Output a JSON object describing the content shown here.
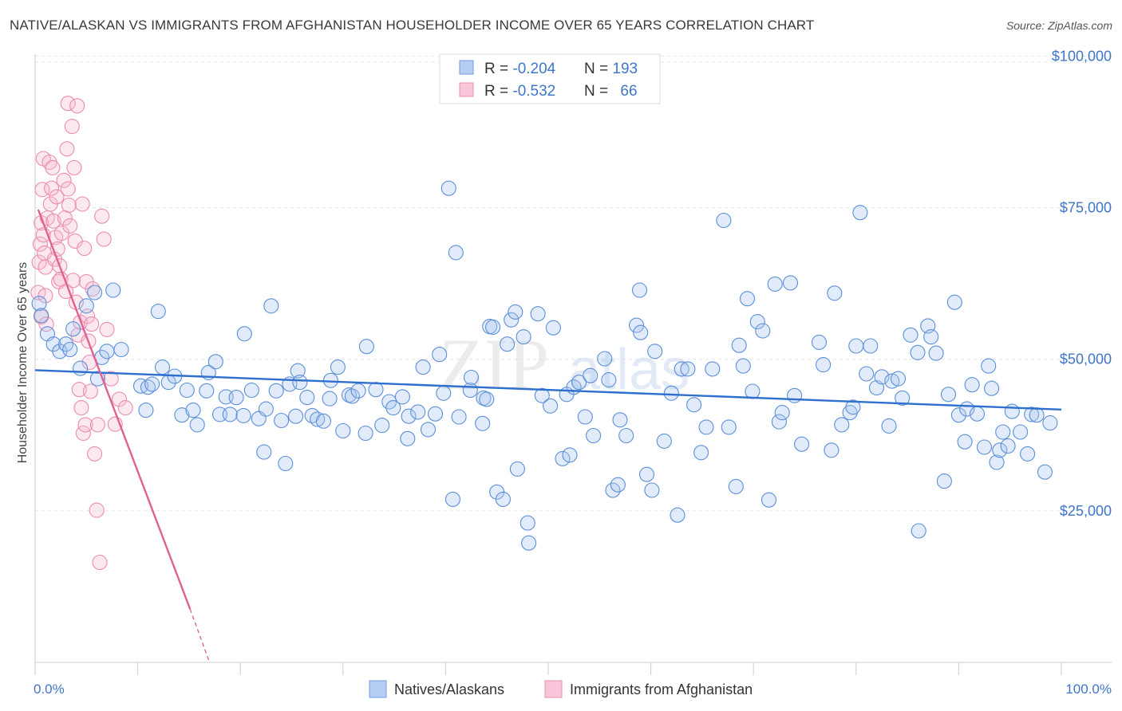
{
  "title": "NATIVE/ALASKAN VS IMMIGRANTS FROM AFGHANISTAN HOUSEHOLDER INCOME OVER 65 YEARS CORRELATION CHART",
  "source": "Source: ZipAtlas.com",
  "watermark": {
    "zip": "ZIP",
    "atlas": "atlas"
  },
  "colors": {
    "blue": "#5b8fd6",
    "blue_fill": "#a9c6ef",
    "blue_line": "#2f6fce",
    "pink": "#ea8bb0",
    "pink_fill": "#f6bdd2",
    "pink_line": "#e0638f",
    "tick_label": "#3f76c8",
    "grid": "#e4e4e4"
  },
  "stats": {
    "blue": {
      "r_label": "R = ",
      "r": "-0.204",
      "n_label": "N = ",
      "n": "193"
    },
    "pink": {
      "r_label": "R = ",
      "r": "-0.532",
      "n_label": "N = ",
      "n": "66"
    }
  },
  "chart_data": {
    "type": "scatter",
    "ylabel": "Householder Income Over 65 years",
    "xlim": [
      0,
      100
    ],
    "ylim": [
      0,
      104000
    ],
    "x_tick_labels": [
      "0.0%",
      "100.0%"
    ],
    "y_ticks": [
      25000,
      50000,
      75000,
      100000
    ],
    "y_tick_labels": [
      "$25,000",
      "$50,000",
      "$75,000",
      "$100,000"
    ],
    "legend": [
      "Natives/Alaskans",
      "Immigrants from Afghanistan"
    ],
    "legend_position": "bottom",
    "grid": true,
    "series": [
      {
        "name": "Natives/Alaskans",
        "trend": {
          "x": [
            0,
            100
          ],
          "y": [
            48200,
            41700
          ]
        },
        "points": [
          [
            0.4,
            59200
          ],
          [
            0.6,
            57200
          ],
          [
            1.2,
            54200
          ],
          [
            1.8,
            52500
          ],
          [
            2.4,
            51300
          ],
          [
            3.0,
            52500
          ],
          [
            3.4,
            51600
          ],
          [
            3.7,
            55000
          ],
          [
            4.4,
            48500
          ],
          [
            5.0,
            58800
          ],
          [
            5.8,
            61000
          ],
          [
            6.1,
            46800
          ],
          [
            6.5,
            50300
          ],
          [
            7.0,
            51300
          ],
          [
            7.6,
            61400
          ],
          [
            8.4,
            51600
          ],
          [
            10.3,
            45600
          ],
          [
            10.8,
            41600
          ],
          [
            11.0,
            45400
          ],
          [
            11.4,
            45900
          ],
          [
            12.0,
            57900
          ],
          [
            12.4,
            48700
          ],
          [
            13.0,
            46200
          ],
          [
            13.6,
            47200
          ],
          [
            14.3,
            40800
          ],
          [
            14.8,
            44900
          ],
          [
            15.4,
            41600
          ],
          [
            15.8,
            39200
          ],
          [
            16.7,
            44800
          ],
          [
            16.9,
            47800
          ],
          [
            17.6,
            49600
          ],
          [
            18.0,
            40900
          ],
          [
            18.6,
            43800
          ],
          [
            19.0,
            40900
          ],
          [
            19.6,
            43700
          ],
          [
            20.3,
            40700
          ],
          [
            20.4,
            54200
          ],
          [
            21.1,
            44900
          ],
          [
            21.8,
            40200
          ],
          [
            22.3,
            34700
          ],
          [
            22.5,
            41800
          ],
          [
            23.0,
            58800
          ],
          [
            23.5,
            44800
          ],
          [
            24.0,
            39900
          ],
          [
            24.4,
            32800
          ],
          [
            24.8,
            45900
          ],
          [
            25.4,
            40600
          ],
          [
            25.6,
            48100
          ],
          [
            25.8,
            46200
          ],
          [
            26.5,
            43700
          ],
          [
            27.0,
            40700
          ],
          [
            27.5,
            40100
          ],
          [
            28.1,
            39800
          ],
          [
            28.7,
            43500
          ],
          [
            28.8,
            46500
          ],
          [
            29.5,
            48700
          ],
          [
            30.0,
            38200
          ],
          [
            30.6,
            44100
          ],
          [
            30.9,
            43900
          ],
          [
            31.5,
            44800
          ],
          [
            32.2,
            37800
          ],
          [
            32.3,
            52100
          ],
          [
            33.2,
            45000
          ],
          [
            33.8,
            39100
          ],
          [
            34.5,
            43000
          ],
          [
            34.9,
            42000
          ],
          [
            35.8,
            43800
          ],
          [
            36.3,
            36900
          ],
          [
            36.4,
            40600
          ],
          [
            37.3,
            41300
          ],
          [
            37.8,
            48700
          ],
          [
            38.3,
            38400
          ],
          [
            39.0,
            41000
          ],
          [
            39.4,
            50800
          ],
          [
            39.8,
            44400
          ],
          [
            40.3,
            78200
          ],
          [
            40.7,
            26900
          ],
          [
            41.0,
            67600
          ],
          [
            41.3,
            40500
          ],
          [
            42.4,
            44900
          ],
          [
            42.5,
            47000
          ],
          [
            43.6,
            39400
          ],
          [
            43.7,
            43600
          ],
          [
            44.0,
            43400
          ],
          [
            44.3,
            55400
          ],
          [
            44.6,
            55300
          ],
          [
            45.0,
            28100
          ],
          [
            45.6,
            26900
          ],
          [
            46.0,
            52500
          ],
          [
            46.4,
            56500
          ],
          [
            46.8,
            57800
          ],
          [
            47.0,
            31900
          ],
          [
            47.6,
            53700
          ],
          [
            48.0,
            23000
          ],
          [
            48.1,
            19700
          ],
          [
            49.0,
            57500
          ],
          [
            49.4,
            44000
          ],
          [
            50.2,
            42300
          ],
          [
            50.5,
            55200
          ],
          [
            51.4,
            33600
          ],
          [
            51.8,
            44200
          ],
          [
            52.1,
            34200
          ],
          [
            52.5,
            45400
          ],
          [
            53.0,
            46200
          ],
          [
            53.6,
            40500
          ],
          [
            54.1,
            47300
          ],
          [
            54.4,
            37400
          ],
          [
            55.5,
            50100
          ],
          [
            55.9,
            46600
          ],
          [
            56.3,
            28400
          ],
          [
            56.8,
            29300
          ],
          [
            57.0,
            40000
          ],
          [
            57.6,
            37400
          ],
          [
            58.6,
            55600
          ],
          [
            58.9,
            61400
          ],
          [
            59.0,
            54400
          ],
          [
            59.6,
            31000
          ],
          [
            60.1,
            28400
          ],
          [
            60.4,
            51300
          ],
          [
            61.3,
            36500
          ],
          [
            62.0,
            44400
          ],
          [
            62.6,
            24300
          ],
          [
            63.0,
            48400
          ],
          [
            63.6,
            48400
          ],
          [
            64.2,
            42500
          ],
          [
            64.9,
            34600
          ],
          [
            65.4,
            38800
          ],
          [
            66.0,
            48400
          ],
          [
            67.1,
            72900
          ],
          [
            67.6,
            38800
          ],
          [
            68.3,
            29000
          ],
          [
            68.6,
            52300
          ],
          [
            69.0,
            48900
          ],
          [
            69.4,
            60000
          ],
          [
            69.9,
            44700
          ],
          [
            70.4,
            56200
          ],
          [
            70.9,
            54700
          ],
          [
            71.5,
            26800
          ],
          [
            72.1,
            62400
          ],
          [
            72.5,
            39700
          ],
          [
            72.8,
            41200
          ],
          [
            73.6,
            62600
          ],
          [
            74.0,
            44000
          ],
          [
            74.7,
            36000
          ],
          [
            76.4,
            52800
          ],
          [
            76.8,
            49100
          ],
          [
            77.6,
            35000
          ],
          [
            77.9,
            60900
          ],
          [
            78.6,
            39200
          ],
          [
            79.4,
            41200
          ],
          [
            79.7,
            42100
          ],
          [
            80.0,
            52200
          ],
          [
            80.4,
            74200
          ],
          [
            81.0,
            47600
          ],
          [
            81.4,
            52200
          ],
          [
            82.0,
            45300
          ],
          [
            82.5,
            47100
          ],
          [
            83.2,
            39000
          ],
          [
            83.5,
            46400
          ],
          [
            84.1,
            46800
          ],
          [
            84.5,
            43600
          ],
          [
            85.3,
            54000
          ],
          [
            86.0,
            51100
          ],
          [
            86.1,
            21700
          ],
          [
            87.0,
            55500
          ],
          [
            87.3,
            53700
          ],
          [
            87.8,
            51000
          ],
          [
            88.6,
            29900
          ],
          [
            89.0,
            44200
          ],
          [
            89.6,
            59400
          ],
          [
            90.0,
            40800
          ],
          [
            90.6,
            36400
          ],
          [
            90.8,
            41800
          ],
          [
            91.3,
            45800
          ],
          [
            91.8,
            41000
          ],
          [
            92.5,
            35500
          ],
          [
            92.9,
            48900
          ],
          [
            93.2,
            45200
          ],
          [
            93.7,
            33000
          ],
          [
            94.0,
            35000
          ],
          [
            94.3,
            38000
          ],
          [
            94.8,
            35700
          ],
          [
            95.2,
            41400
          ],
          [
            96.0,
            38000
          ],
          [
            96.7,
            34400
          ],
          [
            97.1,
            40900
          ],
          [
            97.6,
            40800
          ],
          [
            98.4,
            31400
          ],
          [
            98.9,
            39500
          ]
        ]
      },
      {
        "name": "Immigrants from Afghanistan",
        "trend": {
          "x": [
            0.3,
            15.1
          ],
          "y": [
            74700,
            8800
          ]
        },
        "trend_dashed": {
          "x": [
            15.1,
            17.0
          ],
          "y": [
            8800,
            0
          ]
        },
        "points": [
          [
            0.3,
            61000
          ],
          [
            0.4,
            66000
          ],
          [
            0.5,
            69000
          ],
          [
            0.6,
            72500
          ],
          [
            0.6,
            57000
          ],
          [
            0.7,
            78000
          ],
          [
            0.8,
            83100
          ],
          [
            0.8,
            70500
          ],
          [
            0.9,
            67500
          ],
          [
            1.0,
            65200
          ],
          [
            1.0,
            60500
          ],
          [
            1.1,
            55800
          ],
          [
            1.2,
            73300
          ],
          [
            1.4,
            82500
          ],
          [
            1.5,
            75600
          ],
          [
            1.6,
            78200
          ],
          [
            1.7,
            81600
          ],
          [
            1.8,
            72800
          ],
          [
            1.9,
            66500
          ],
          [
            2.0,
            70100
          ],
          [
            2.1,
            76800
          ],
          [
            2.2,
            68200
          ],
          [
            2.3,
            62800
          ],
          [
            2.4,
            65400
          ],
          [
            2.5,
            63200
          ],
          [
            2.6,
            70800
          ],
          [
            2.8,
            79500
          ],
          [
            2.9,
            73300
          ],
          [
            3.0,
            61200
          ],
          [
            3.1,
            84700
          ],
          [
            3.2,
            92200
          ],
          [
            3.2,
            78100
          ],
          [
            3.3,
            75400
          ],
          [
            3.4,
            72000
          ],
          [
            3.6,
            88400
          ],
          [
            3.7,
            63000
          ],
          [
            3.8,
            81600
          ],
          [
            3.9,
            69500
          ],
          [
            4.0,
            59400
          ],
          [
            4.1,
            91800
          ],
          [
            4.2,
            54000
          ],
          [
            4.3,
            45000
          ],
          [
            4.4,
            56100
          ],
          [
            4.5,
            42000
          ],
          [
            4.6,
            75600
          ],
          [
            4.7,
            37800
          ],
          [
            4.8,
            68300
          ],
          [
            4.9,
            39200
          ],
          [
            5.0,
            62800
          ],
          [
            5.1,
            57100
          ],
          [
            5.2,
            53000
          ],
          [
            5.3,
            49500
          ],
          [
            5.4,
            44700
          ],
          [
            5.5,
            55800
          ],
          [
            5.6,
            61600
          ],
          [
            5.8,
            34400
          ],
          [
            6.0,
            25100
          ],
          [
            6.1,
            39200
          ],
          [
            6.3,
            16500
          ],
          [
            6.5,
            73600
          ],
          [
            6.7,
            69800
          ],
          [
            7.0,
            54900
          ],
          [
            7.4,
            46800
          ],
          [
            7.8,
            39300
          ],
          [
            8.2,
            43400
          ],
          [
            8.8,
            42000
          ]
        ]
      }
    ]
  }
}
